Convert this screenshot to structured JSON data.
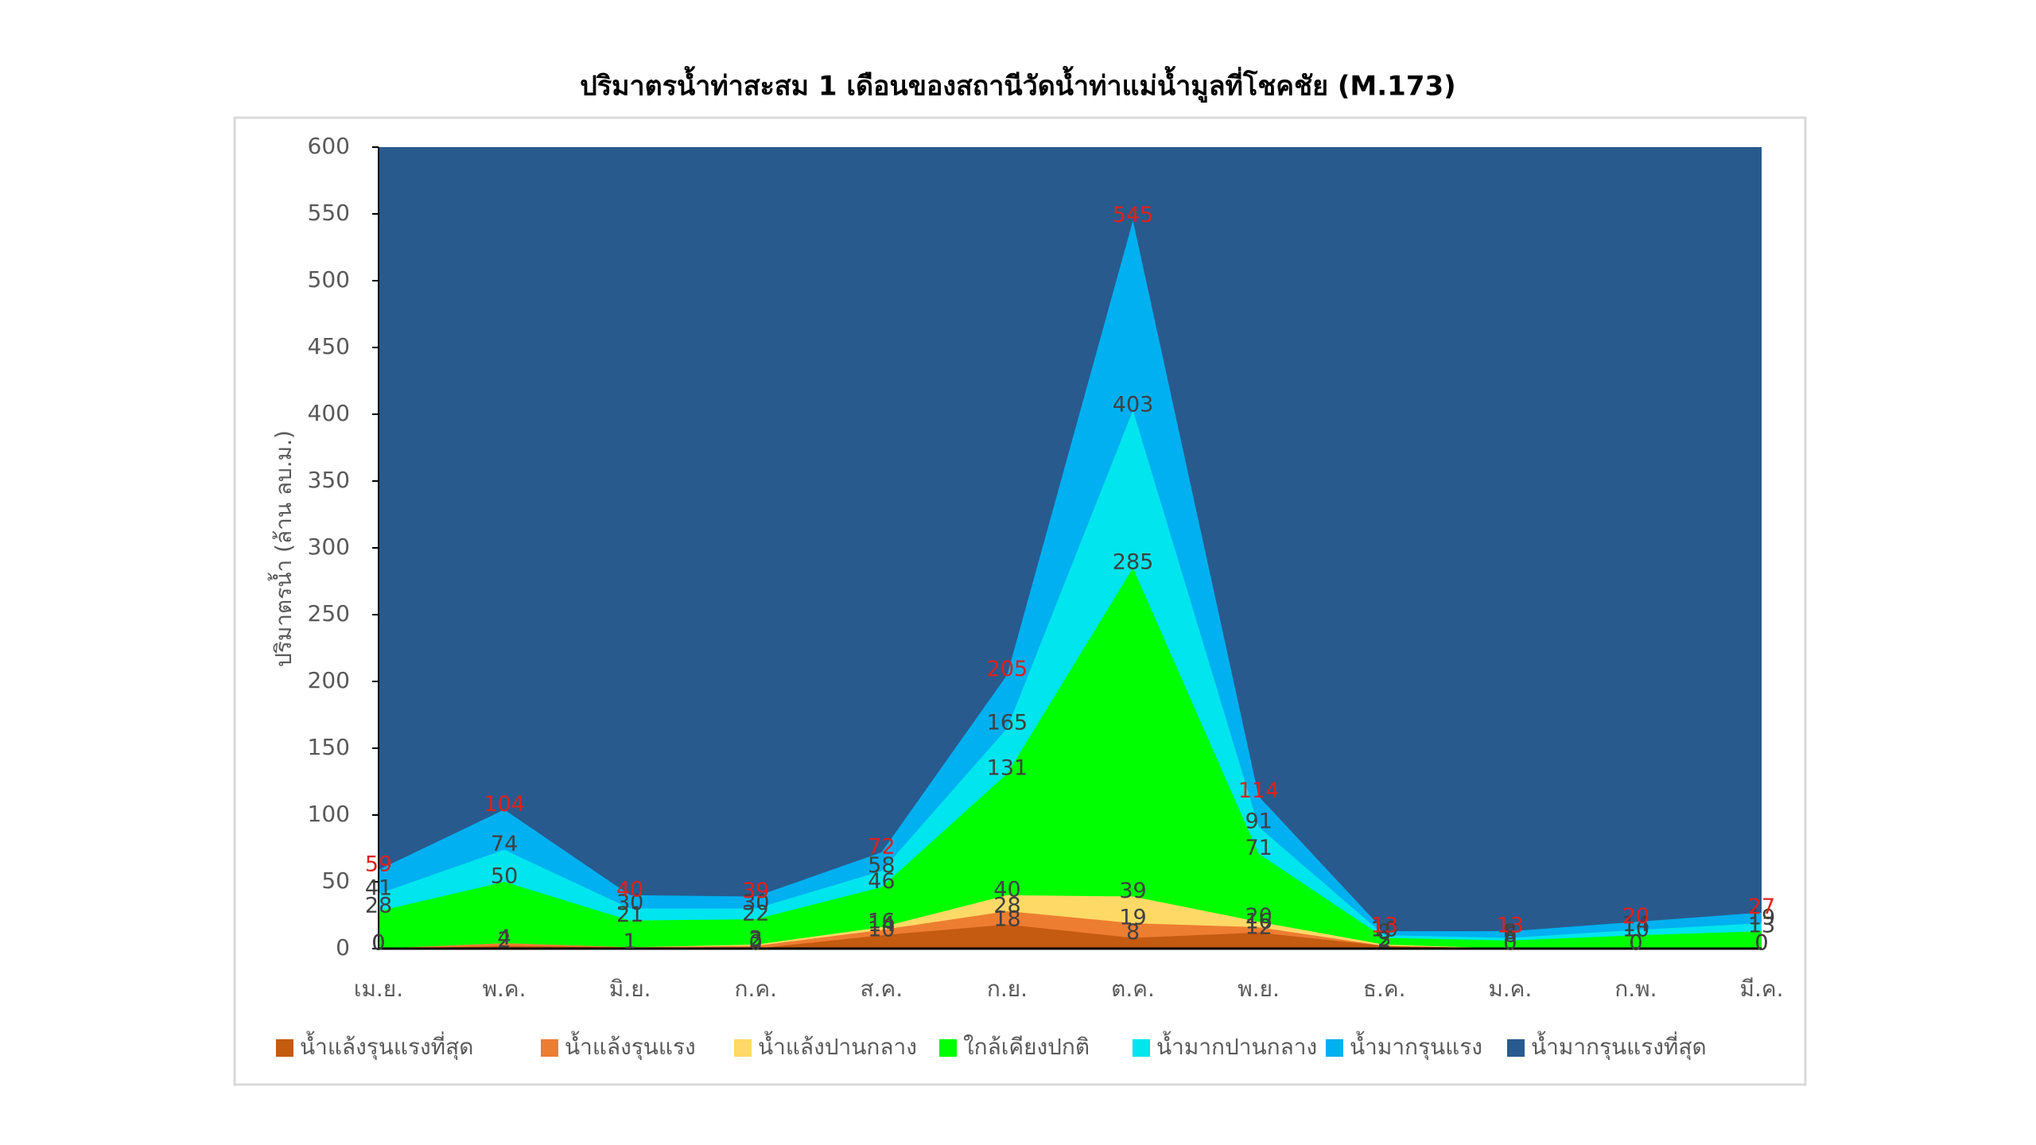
{
  "chart_data": {
    "type": "area",
    "title": "ปริมาตรน้ำท่าสะสม 1 เดือนของสถานีวัดน้ำท่าแม่น้ำมูลที่โชคชัย (M.173)",
    "y_label": "ปริมาตรน้ำ (ล้าน ลบ.ม.)",
    "categories": [
      "เม.ย.",
      "พ.ค.",
      "มิ.ย.",
      "ก.ค.",
      "ส.ค.",
      "ก.ย.",
      "ต.ค.",
      "พ.ย.",
      "ธ.ค.",
      "ม.ค.",
      "ก.พ.",
      "มี.ค."
    ],
    "ylim": [
      0,
      600
    ],
    "yticks": [
      0,
      50,
      100,
      150,
      200,
      250,
      300,
      350,
      400,
      450,
      500,
      550,
      600
    ],
    "series": [
      {
        "name": "น้ำแล้งรุนแรงที่สุด",
        "color": "#c55a11",
        "label_color": "#404040",
        "values": [
          0,
          2,
          1,
          0,
          10,
          18,
          8,
          12,
          2,
          0,
          0,
          0
        ]
      },
      {
        "name": "น้ำแล้งรุนแรง",
        "color": "#ed7d31",
        "label_color": "#404040",
        "values": [
          0,
          4,
          1,
          2,
          14,
          28,
          19,
          16,
          2,
          0,
          0,
          0
        ]
      },
      {
        "name": "น้ำแล้งปานกลาง",
        "color": "#ffd966",
        "label_color": "#404040",
        "values": [
          0,
          4,
          1,
          3,
          16,
          40,
          39,
          20,
          3,
          0,
          0,
          0
        ]
      },
      {
        "name": "ใกล้เคียงปกติ",
        "color": "#00ff00",
        "label_color": "#404040",
        "values": [
          28,
          50,
          21,
          22,
          46,
          131,
          285,
          71,
          8,
          6,
          10,
          13
        ]
      },
      {
        "name": "น้ำมากปานกลาง",
        "color": "#00e5ee",
        "label_color": "#404040",
        "values": [
          41,
          74,
          30,
          30,
          58,
          165,
          403,
          91,
          10,
          8,
          14,
          19
        ]
      },
      {
        "name": "น้ำมากรุนแรง",
        "color": "#00b0f0",
        "label_color": "#e0201b",
        "values": [
          59,
          104,
          40,
          39,
          72,
          205,
          545,
          114,
          13,
          13,
          20,
          27
        ]
      },
      {
        "name": "น้ำมากรุนแรงที่สุด",
        "color": "#285a8e",
        "values": [
          600,
          600,
          600,
          600,
          600,
          600,
          600,
          600,
          600,
          600,
          600,
          600
        ]
      }
    ],
    "legend": "bottom"
  }
}
